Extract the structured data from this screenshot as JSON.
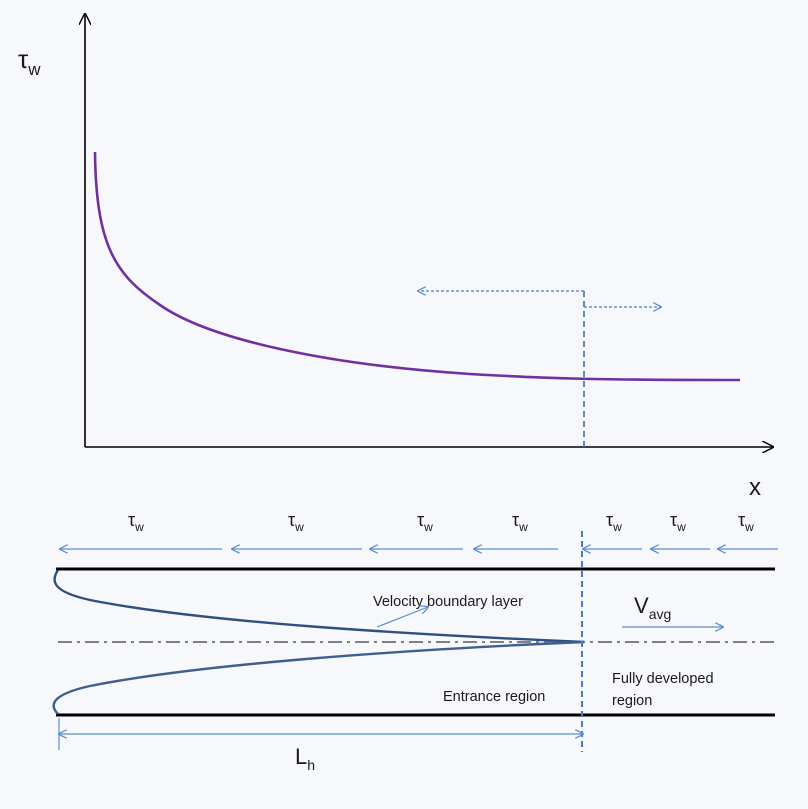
{
  "graph": {
    "y_axis_symbol": "τ",
    "y_axis_subscript": "w",
    "x_axis_label": "x"
  },
  "pipe": {
    "shear_labels": [
      {
        "symbol": "τ",
        "sub": "w"
      },
      {
        "symbol": "τ",
        "sub": "w"
      },
      {
        "symbol": "τ",
        "sub": "w"
      },
      {
        "symbol": "τ",
        "sub": "w"
      },
      {
        "symbol": "τ",
        "sub": "w"
      },
      {
        "symbol": "τ",
        "sub": "w"
      },
      {
        "symbol": "τ",
        "sub": "w"
      }
    ],
    "velocity_boundary_layer": "Velocity boundary layer",
    "entrance_region": "Entrance region",
    "fully_developed_line1": "Fully developed",
    "fully_developed_line2": "region",
    "vavg_symbol": "V",
    "vavg_subscript": "avg",
    "lh_symbol": "L",
    "lh_subscript": "h"
  },
  "colors": {
    "curve": "#7030a0",
    "arrow_blue": "#5b8fd0",
    "profile": "#2f4f7f",
    "axis": "#000000",
    "centerline": "#808080"
  }
}
